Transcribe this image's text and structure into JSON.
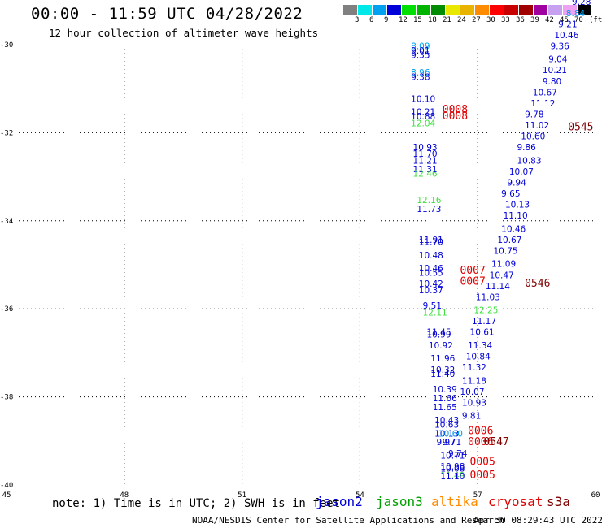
{
  "header": {
    "title": "00:00 - 11:59 UTC 04/28/2022",
    "subtitle": "12 hour collection of altimeter wave heights"
  },
  "colorbar": {
    "unit_label": "(ft)",
    "levels": [
      "3",
      "6",
      "9",
      "12",
      "15",
      "18",
      "21",
      "24",
      "27",
      "30",
      "33",
      "36",
      "39",
      "42",
      "45",
      "70"
    ],
    "colors": [
      "#808080",
      "#00e8e8",
      "#00a0f0",
      "#0000d8",
      "#00e000",
      "#00b400",
      "#008c00",
      "#e8e800",
      "#e8b400",
      "#ff8c00",
      "#ff0000",
      "#c80000",
      "#a00000",
      "#a000a0",
      "#c8a0f0",
      "#f0a0f0",
      "#000000"
    ]
  },
  "chart_data": {
    "type": "scatter",
    "xlim": [
      45,
      60
    ],
    "ylim": [
      -40,
      -30
    ],
    "x_ticks": [
      "45",
      "48",
      "51",
      "54",
      "57",
      "60"
    ],
    "y_ticks": [
      "-30",
      "-32",
      "-34",
      "-36",
      "-38",
      "-40"
    ],
    "grid": true,
    "height_labels": [
      {
        "x": 55.3,
        "y": -30.1,
        "text": "8.09",
        "color": "#00a0f0"
      },
      {
        "x": 55.3,
        "y": -30.2,
        "text": "9.01",
        "color": "#0000d8"
      },
      {
        "x": 55.3,
        "y": -30.3,
        "text": "9.35",
        "color": "#0000d8"
      },
      {
        "x": 55.3,
        "y": -30.7,
        "text": "8.96",
        "color": "#00a0f0"
      },
      {
        "x": 55.3,
        "y": -30.8,
        "text": "9.38",
        "color": "#0000d8"
      },
      {
        "x": 55.3,
        "y": -31.3,
        "text": "10.10",
        "color": "#0000d8"
      },
      {
        "x": 55.3,
        "y": -31.6,
        "text": "10.21",
        "color": "#0000d8"
      },
      {
        "x": 55.3,
        "y": -31.7,
        "text": "10.88",
        "color": "#0000d8"
      },
      {
        "x": 55.3,
        "y": -31.85,
        "text": "12.04",
        "color": "#40e040"
      },
      {
        "x": 55.35,
        "y": -32.4,
        "text": "10.93",
        "color": "#0000d8"
      },
      {
        "x": 55.35,
        "y": -32.55,
        "text": "11.70",
        "color": "#0000d8"
      },
      {
        "x": 55.35,
        "y": -32.7,
        "text": "11.21",
        "color": "#0000d8"
      },
      {
        "x": 55.35,
        "y": -32.9,
        "text": "11.31",
        "color": "#0000d8"
      },
      {
        "x": 55.35,
        "y": -33.0,
        "text": "12.46",
        "color": "#40e040"
      },
      {
        "x": 55.45,
        "y": -33.6,
        "text": "12.16",
        "color": "#40e040"
      },
      {
        "x": 55.45,
        "y": -33.8,
        "text": "11.73",
        "color": "#0000d8"
      },
      {
        "x": 55.5,
        "y": -34.5,
        "text": "11.91",
        "color": "#0000d8"
      },
      {
        "x": 55.5,
        "y": -34.55,
        "text": "11.70",
        "color": "#0000d8"
      },
      {
        "x": 55.5,
        "y": -34.85,
        "text": "10.48",
        "color": "#0000d8"
      },
      {
        "x": 55.5,
        "y": -35.15,
        "text": "10.46",
        "color": "#0000d8"
      },
      {
        "x": 55.5,
        "y": -35.25,
        "text": "10.55",
        "color": "#0000d8"
      },
      {
        "x": 55.5,
        "y": -35.5,
        "text": "10.42",
        "color": "#0000d8"
      },
      {
        "x": 55.5,
        "y": -35.65,
        "text": "10.37",
        "color": "#0000d8"
      },
      {
        "x": 55.6,
        "y": -36.0,
        "text": "9.51",
        "color": "#0000d8"
      },
      {
        "x": 55.6,
        "y": -36.15,
        "text": "12.11",
        "color": "#40e040"
      },
      {
        "x": 55.7,
        "y": -36.6,
        "text": "11.45",
        "color": "#0000d8"
      },
      {
        "x": 55.7,
        "y": -36.65,
        "text": "10.99",
        "color": "#0000d8"
      },
      {
        "x": 55.75,
        "y": -36.9,
        "text": "10.92",
        "color": "#0000d8"
      },
      {
        "x": 55.8,
        "y": -37.2,
        "text": "11.96",
        "color": "#0000d8"
      },
      {
        "x": 55.8,
        "y": -37.45,
        "text": "10.32",
        "color": "#0000d8"
      },
      {
        "x": 55.8,
        "y": -37.55,
        "text": "11.40",
        "color": "#0000d8"
      },
      {
        "x": 55.85,
        "y": -37.9,
        "text": "10.39",
        "color": "#0000d8"
      },
      {
        "x": 55.85,
        "y": -38.1,
        "text": "11.66",
        "color": "#0000d8"
      },
      {
        "x": 55.85,
        "y": -38.3,
        "text": "11.65",
        "color": "#0000d8"
      },
      {
        "x": 55.9,
        "y": -38.6,
        "text": "10.43",
        "color": "#0000d8"
      },
      {
        "x": 55.9,
        "y": -38.7,
        "text": "10.63",
        "color": "#0000d8"
      },
      {
        "x": 55.9,
        "y": -38.9,
        "text": "10.13",
        "color": "#0000d8"
      },
      {
        "x": 56.0,
        "y": -38.9,
        "text": "10.60",
        "color": "#00a0f0"
      },
      {
        "x": 55.95,
        "y": -39.1,
        "text": "9.97",
        "color": "#0000d8"
      },
      {
        "x": 56.1,
        "y": -39.1,
        "text": "9.71",
        "color": "#0000d8"
      },
      {
        "x": 56.05,
        "y": -39.4,
        "text": "10.71",
        "color": "#0000d8"
      },
      {
        "x": 56.25,
        "y": -39.35,
        "text": "9.74",
        "color": "#0000d8"
      },
      {
        "x": 56.05,
        "y": -39.65,
        "text": "10.98",
        "color": "#0000d8"
      },
      {
        "x": 56.05,
        "y": -39.7,
        "text": "10.08",
        "color": "#0000d8"
      },
      {
        "x": 56.05,
        "y": -39.85,
        "text": "11.49",
        "color": "#40e040"
      },
      {
        "x": 56.05,
        "y": -39.87,
        "text": "11.10",
        "color": "#0000d8"
      },
      {
        "x": 56.6,
        "y": -38.5,
        "text": "9.81",
        "color": "#0000d8"
      },
      {
        "x": 56.6,
        "y": -38.2,
        "text": "10.93",
        "color": "#0000d8"
      },
      {
        "x": 56.55,
        "y": -37.95,
        "text": "10.07",
        "color": "#0000d8"
      },
      {
        "x": 56.6,
        "y": -37.7,
        "text": "11.18",
        "color": "#0000d8"
      },
      {
        "x": 56.6,
        "y": -37.4,
        "text": "11.32",
        "color": "#0000d8"
      },
      {
        "x": 56.7,
        "y": -37.15,
        "text": "10.84",
        "color": "#0000d8"
      },
      {
        "x": 56.75,
        "y": -36.9,
        "text": "11.34",
        "color": "#0000d8"
      },
      {
        "x": 56.8,
        "y": -36.6,
        "text": "10.61",
        "color": "#0000d8"
      },
      {
        "x": 56.85,
        "y": -36.35,
        "text": "11.17",
        "color": "#0000d8"
      },
      {
        "x": 56.9,
        "y": -36.1,
        "text": "12.25",
        "color": "#40e040"
      },
      {
        "x": 56.95,
        "y": -35.8,
        "text": "11.03",
        "color": "#0000d8"
      },
      {
        "x": 57.2,
        "y": -35.55,
        "text": "11.14",
        "color": "#0000d8"
      },
      {
        "x": 57.3,
        "y": -35.3,
        "text": "10.47",
        "color": "#0000d8"
      },
      {
        "x": 57.35,
        "y": -35.05,
        "text": "11.09",
        "color": "#0000d8"
      },
      {
        "x": 57.4,
        "y": -34.75,
        "text": "10.75",
        "color": "#0000d8"
      },
      {
        "x": 57.5,
        "y": -34.5,
        "text": "10.67",
        "color": "#0000d8"
      },
      {
        "x": 57.6,
        "y": -34.25,
        "text": "10.46",
        "color": "#0000d8"
      },
      {
        "x": 57.65,
        "y": -33.95,
        "text": "11.10",
        "color": "#0000d8"
      },
      {
        "x": 57.7,
        "y": -33.7,
        "text": "10.13",
        "color": "#0000d8"
      },
      {
        "x": 57.6,
        "y": -33.45,
        "text": "9.65",
        "color": "#0000d8"
      },
      {
        "x": 57.75,
        "y": -33.2,
        "text": "9.94",
        "color": "#0000d8"
      },
      {
        "x": 57.8,
        "y": -32.95,
        "text": "10.07",
        "color": "#0000d8"
      },
      {
        "x": 58.0,
        "y": -32.7,
        "text": "10.83",
        "color": "#0000d8"
      },
      {
        "x": 58.0,
        "y": -32.4,
        "text": "9.86",
        "color": "#0000d8"
      },
      {
        "x": 58.1,
        "y": -32.15,
        "text": "10.60",
        "color": "#0000d8"
      },
      {
        "x": 58.2,
        "y": -31.9,
        "text": "11.02",
        "color": "#0000d8"
      },
      {
        "x": 58.2,
        "y": -31.65,
        "text": "9.78",
        "color": "#0000d8"
      },
      {
        "x": 58.35,
        "y": -31.4,
        "text": "11.12",
        "color": "#0000d8"
      },
      {
        "x": 58.4,
        "y": -31.15,
        "text": "10.67",
        "color": "#0000d8"
      },
      {
        "x": 58.65,
        "y": -30.9,
        "text": "9.80",
        "color": "#0000d8"
      },
      {
        "x": 58.65,
        "y": -30.65,
        "text": "10.21",
        "color": "#0000d8"
      },
      {
        "x": 58.8,
        "y": -30.4,
        "text": "9.04",
        "color": "#0000d8"
      },
      {
        "x": 58.85,
        "y": -30.1,
        "text": "9.36",
        "color": "#0000d8"
      },
      {
        "x": 58.95,
        "y": -29.85,
        "text": "10.46",
        "color": "#0000d8"
      },
      {
        "x": 59.05,
        "y": -29.6,
        "text": "9.21",
        "color": "#0000d8"
      },
      {
        "x": 59.25,
        "y": -29.35,
        "text": "8.84",
        "color": "#00a0f0"
      },
      {
        "x": 59.4,
        "y": -29.1,
        "text": "9.28",
        "color": "#0000d8"
      }
    ],
    "time_labels": [
      {
        "x": 56.1,
        "y": -31.55,
        "text": "0008",
        "color": "#e00000"
      },
      {
        "x": 56.1,
        "y": -31.7,
        "text": "0008",
        "color": "#e00000"
      },
      {
        "x": 56.55,
        "y": -35.2,
        "text": "0007",
        "color": "#e00000"
      },
      {
        "x": 56.55,
        "y": -35.45,
        "text": "0007",
        "color": "#e00000"
      },
      {
        "x": 56.75,
        "y": -38.85,
        "text": "0006",
        "color": "#e00000"
      },
      {
        "x": 56.75,
        "y": -39.1,
        "text": "0006",
        "color": "#e00000"
      },
      {
        "x": 56.8,
        "y": -39.55,
        "text": "0005",
        "color": "#e00000"
      },
      {
        "x": 56.8,
        "y": -39.85,
        "text": "0005",
        "color": "#e00000"
      },
      {
        "x": 57.15,
        "y": -39.1,
        "text": "0547",
        "color": "#800000"
      },
      {
        "x": 58.2,
        "y": -35.5,
        "text": "0546",
        "color": "#800000"
      },
      {
        "x": 59.3,
        "y": -31.95,
        "text": "0545",
        "color": "#800000"
      },
      {
        "x": 60.2,
        "y": -29.1,
        "text": "05",
        "color": "#800000"
      }
    ]
  },
  "footer": {
    "note": "note: 1) Time is in UTC; 2) SWH is in feet",
    "satellites": [
      {
        "name": "jason2",
        "color": "#0000d8"
      },
      {
        "name": "jason3",
        "color": "#00a000"
      },
      {
        "name": "altika",
        "color": "#ff8c00"
      },
      {
        "name": "cryosat",
        "color": "#e00000"
      },
      {
        "name": "s3a",
        "color": "#800000"
      }
    ],
    "credit": "NOAA/NESDIS Center for Satellite Applications and Research",
    "timestamp": "Apr 30 08:29:43 UTC 2022"
  }
}
